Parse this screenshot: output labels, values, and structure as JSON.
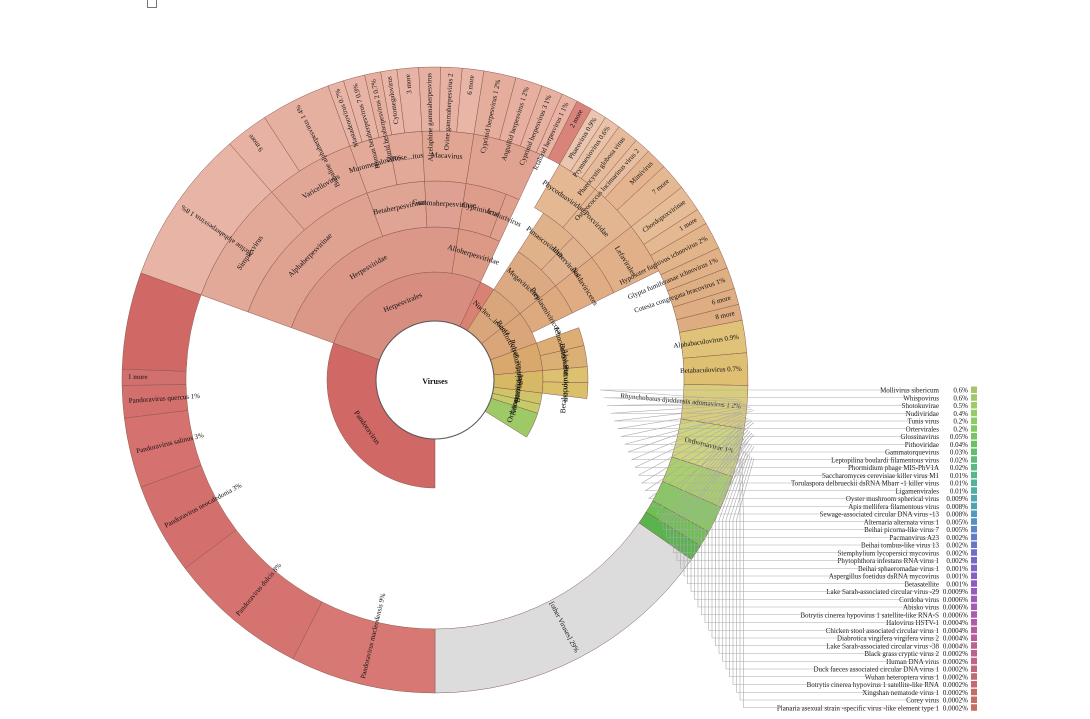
{
  "chart_data": {
    "type": "sunburst",
    "title": "",
    "center_label": "Viruses",
    "top_left_checkbox": "",
    "wedges": [
      {
        "ring": 1,
        "label": "Herpesvirales",
        "a0": -70,
        "a1": 25,
        "color": "#d78e80"
      },
      {
        "ring": 2,
        "label": "Herpesviridae",
        "a0": -70,
        "a1": 9,
        "color": "#db9888"
      },
      {
        "ring": 2,
        "label": "Alloherpesviridae",
        "a0": 9,
        "a1": 25,
        "color": "#dc9986"
      },
      {
        "ring": 3,
        "label": "Alphaherpesvirinae",
        "a0": -70,
        "a1": -20,
        "color": "#dfa190"
      },
      {
        "ring": 3,
        "label": "Betaherpesvirinae",
        "a0": -20,
        "a1": -3,
        "color": "#e0a494"
      },
      {
        "ring": 3,
        "label": "Gammaherpesvirinae",
        "a0": -3,
        "a1": 9,
        "color": "#dea092"
      },
      {
        "ring": 3,
        "label": "Cyprinivirus",
        "a0": 9,
        "a1": 21,
        "color": "#de9c8a"
      },
      {
        "ring": 3,
        "label": "Ictalurivirus",
        "a0": 21,
        "a1": 25,
        "color": "#dfa08e"
      },
      {
        "ring": 4,
        "label": "Simplexvirus",
        "a0": -70,
        "a1": -41,
        "color": "#e2a898"
      },
      {
        "ring": 4,
        "label": "Varicellovirus",
        "a0": -41,
        "a1": -20,
        "color": "#e1a696"
      },
      {
        "ring": 4,
        "label": "Muromegalovirus",
        "a0": -20,
        "a1": -11,
        "color": "#e3aa9a"
      },
      {
        "ring": 4,
        "label": "Rose...itus",
        "a0": -11,
        "a1": -3,
        "color": "#e2a898"
      },
      {
        "ring": 4,
        "label": "Macavirus",
        "a0": -3,
        "a1": 9,
        "color": "#e1a593"
      },
      {
        "ring": 4,
        "label": "",
        "a0": 9,
        "a1": 25,
        "color": "#e0a392"
      },
      {
        "ring": 5,
        "label": "Ateline alphaherpesvirus 1   8%",
        "a0": -70,
        "a1": -41,
        "color": "#e8b4a5"
      },
      {
        "ring": 5,
        "label": "9 more",
        "a0": -41,
        "a1": -33,
        "color": "#e7b2a3"
      },
      {
        "ring": 5,
        "label": "Bubaline alphaherpesvirus 1   4%",
        "a0": -33,
        "a1": -20,
        "color": "#e6b0a1"
      },
      {
        "ring": 5,
        "label": "Mastadenovirus   0.7%",
        "a0": -20,
        "a1": -17,
        "color": "#e8b4a6"
      },
      {
        "ring": 5,
        "label": "Human betaherpesvirus 7   0.9%",
        "a0": -17,
        "a1": -13,
        "color": "#e7b3a4"
      },
      {
        "ring": 5,
        "label": "Murid betaherpesvirus 2   0.7%",
        "a0": -13,
        "a1": -10,
        "color": "#e6b0a1"
      },
      {
        "ring": 5,
        "label": "Cytomegalovirus",
        "a0": -10,
        "a1": -7,
        "color": "#e8b5a7"
      },
      {
        "ring": 5,
        "label": "3 more",
        "a0": -7,
        "a1": -3,
        "color": "#e7b3a5"
      },
      {
        "ring": 5,
        "label": "Alcelaphine gammaherpesvirus",
        "a0": -3,
        "a1": 1,
        "color": "#e6b1a2"
      },
      {
        "ring": 5,
        "label": "Ovine gammaherpesvirus 2",
        "a0": 1,
        "a1": 5,
        "color": "#e7b2a3"
      },
      {
        "ring": 5,
        "label": "6 more",
        "a0": 5,
        "a1": 9,
        "color": "#e8b5a6"
      },
      {
        "ring": 5,
        "label": "Cyprinid herpesvirus 1   2%",
        "a0": 9,
        "a1": 15,
        "color": "#e5ad9c"
      },
      {
        "ring": 5,
        "label": "Anguillid herpesvirus 1   2%",
        "a0": 15,
        "a1": 20,
        "color": "#e6af9f"
      },
      {
        "ring": 5,
        "label": "Cyprinid herpesvirus 3   1%",
        "a0": 20,
        "a1": 24,
        "color": "#e7b1a1"
      },
      {
        "ring": 5,
        "label": "Ictalurid herpesvirus 1   1%",
        "a0": 24,
        "a1": 27,
        "color": "#e8b3a3"
      },
      {
        "ring": 5,
        "label": "2 more",
        "a0": 27,
        "a1": 30,
        "color": "#d9847a"
      },
      {
        "ring": 1,
        "label": "",
        "a0": 25,
        "a1": 33,
        "color": "#d98274"
      },
      {
        "ring": 1,
        "label": "Nucleo...irocota",
        "a0": 33,
        "a1": 52,
        "color": "#d9a57a"
      },
      {
        "ring": 2,
        "label": "Megaviricetes",
        "a0": 33,
        "a1": 52,
        "color": "#dcaa82"
      },
      {
        "ring": 3,
        "label": "Pimascovirales",
        "a0": 33,
        "a1": 44,
        "color": "#e0b28a"
      },
      {
        "ring": 3,
        "label": "Imitervirales",
        "a0": 44,
        "a1": 52,
        "color": "#e0b18d"
      },
      {
        "ring": 4,
        "label": "Phycodnaviridae",
        "a0": 30,
        "a1": 40,
        "color": "#e3b893"
      },
      {
        "ring": 4,
        "label": "Poxviridae",
        "a0": 40,
        "a1": 52,
        "color": "#e2b690"
      },
      {
        "ring": 5,
        "label": "Phaeovirus   0.9%",
        "a0": 30,
        "a1": 33,
        "color": "#eac5b0"
      },
      {
        "ring": 5,
        "label": "Prymnesiovirus   0.6%",
        "a0": 33,
        "a1": 36,
        "color": "#e9c2a8"
      },
      {
        "ring": 5,
        "label": "Phaeocystis globosa virus",
        "a0": 36,
        "a1": 40,
        "color": "#e6bb9c"
      },
      {
        "ring": 5,
        "label": "Ostreococcus lucimarinus virus 2",
        "a0": 40,
        "a1": 43,
        "color": "#e7bd9f"
      },
      {
        "ring": 5,
        "label": "Mimivirus",
        "a0": 43,
        "a1": 47,
        "color": "#e3b48e"
      },
      {
        "ring": 5,
        "label": "7 more",
        "a0": 47,
        "a1": 52,
        "color": "#e5b894"
      },
      {
        "ring": 1,
        "label": "Bamfordvirae",
        "a0": 52,
        "a1": 70,
        "color": "#dba57a"
      },
      {
        "ring": 2,
        "label": "Preplasmiviricota",
        "a0": 52,
        "a1": 64,
        "color": "#dda97f"
      },
      {
        "ring": 3,
        "label": "Naldaviricetes",
        "a0": 52,
        "a1": 64,
        "color": "#dfac84"
      },
      {
        "ring": 4,
        "label": "Lefavirales",
        "a0": 52,
        "a1": 64,
        "color": "#e1b088"
      },
      {
        "ring": 5,
        "label": "Chordopoxvirinae",
        "a0": 52,
        "a1": 57,
        "color": "#e6bc96"
      },
      {
        "ring": 5,
        "label": "1 more",
        "a0": 57,
        "a1": 60,
        "color": "#e4b891"
      },
      {
        "ring": 5,
        "label": "Hyposoter fugitivus ichnovirus   2%",
        "a0": 60,
        "a1": 65,
        "color": "#e2b48a"
      },
      {
        "ring": 5,
        "label": "Glypta fumiferanae ichnovirus   1%",
        "a0": 65,
        "a1": 69,
        "color": "#e0b186"
      },
      {
        "ring": 5,
        "label": "Cotesia congregata bracovirus   1%",
        "a0": 69,
        "a1": 73,
        "color": "#dfaf84"
      },
      {
        "ring": 5,
        "label": "6 more",
        "a0": 73,
        "a1": 76,
        "color": "#deae82"
      },
      {
        "ring": 5,
        "label": "8 more",
        "a0": 76,
        "a1": 79,
        "color": "#ddac80"
      },
      {
        "ring": 1,
        "label": "Polydnaviridae",
        "a0": 70,
        "a1": 85,
        "color": "#d8a86c"
      },
      {
        "ring": 2,
        "label": "Ichnovirus",
        "a0": 70,
        "a1": 77,
        "color": "#dcae73"
      },
      {
        "ring": 2,
        "label": "Bracovirus",
        "a0": 77,
        "a1": 85,
        "color": "#dbb075"
      },
      {
        "ring": 1,
        "label": "Baculoviridae",
        "a0": 85,
        "a1": 97,
        "color": "#d6b865"
      },
      {
        "ring": 2,
        "label": "Alphabaculovirus",
        "a0": 85,
        "a1": 91,
        "color": "#dcc270"
      },
      {
        "ring": 2,
        "label": "Betabaculovirus",
        "a0": 91,
        "a1": 97,
        "color": "#dbc06c"
      },
      {
        "ring": 5,
        "label": "Alphabaculovirus   0.9%",
        "a0": 79,
        "a1": 85,
        "color": "#e0c378"
      },
      {
        "ring": 5,
        "label": "Betabaculovirus   0.7%",
        "a0": 85,
        "a1": 91,
        "color": "#dfc073"
      },
      {
        "ring": 5,
        "label": "Rhynchobatus djiddensis adomavirus 1   2%",
        "a0": 91,
        "a1": 99,
        "color": "#d9cc7c"
      },
      {
        "ring": 1,
        "label": "Adomaviridae",
        "a0": 97,
        "a1": 103,
        "color": "#cfc46a"
      },
      {
        "ring": 1,
        "label": "Orthornavirae",
        "a0": 103,
        "a1": 108,
        "color": "#c6cb6a"
      },
      {
        "ring": 5,
        "label": "Orthornavirae   1%",
        "a0": 99,
        "a1": 108,
        "color": "#cfd47e"
      },
      {
        "ring": 5,
        "label": "",
        "a0": 108,
        "a1": 114,
        "color": "#aad06a"
      },
      {
        "ring": 5,
        "label": "",
        "a0": 114,
        "a1": 119,
        "color": "#86c95e"
      },
      {
        "ring": 5,
        "label": "",
        "a0": 119,
        "a1": 123,
        "color": "#6fbf55"
      },
      {
        "ring": 1,
        "label": "",
        "a0": 108,
        "a1": 122,
        "color": "#9ec967"
      },
      {
        "ring": 5,
        "label": "",
        "a0": 122,
        "a1": 125,
        "color": "#59b34e"
      },
      {
        "ring": 5,
        "label": "[other Viruses]   29%",
        "a0": 125,
        "a1": 180,
        "color": "#dcdcdc"
      },
      {
        "ring": 1,
        "label": "Pandoravirus",
        "a0": 180,
        "a1": 290,
        "color": "#d06866"
      },
      {
        "ring": 5,
        "label": "Pandoravirus macleodensis   9%",
        "a0": 180,
        "a1": 207,
        "color": "#d77874"
      },
      {
        "ring": 5,
        "label": "Pandoravirus dulcis   8%",
        "a0": 207,
        "a1": 233,
        "color": "#d57371"
      },
      {
        "ring": 5,
        "label": "Pandoravirus neocaledonia   3%",
        "a0": 233,
        "a1": 250,
        "color": "#d3706d"
      },
      {
        "ring": 5,
        "label": "Pandoravirus salinus   3%",
        "a0": 250,
        "a1": 263,
        "color": "#d5726f"
      },
      {
        "ring": 5,
        "label": "Pandoravirus quercus   1%",
        "a0": 263,
        "a1": 269,
        "color": "#d3706d"
      },
      {
        "ring": 5,
        "label": "1 more",
        "a0": 269,
        "a1": 272,
        "color": "#d27070"
      },
      {
        "ring": 5,
        "label": "",
        "a0": 272,
        "a1": 290,
        "color": "#d06866"
      }
    ],
    "legend": [
      {
        "name": "Mollivirus sibericum",
        "pct": "0.6%",
        "color": "#a8c36b"
      },
      {
        "name": "Whispovirus",
        "pct": "0.6%",
        "color": "#a4c66a"
      },
      {
        "name": "Shotokuvirae",
        "pct": "0.5%",
        "color": "#9fca69"
      },
      {
        "name": "Nudiviridae",
        "pct": "0.4%",
        "color": "#96cb68"
      },
      {
        "name": "Tunis virus",
        "pct": "0.2%",
        "color": "#8ccb66"
      },
      {
        "name": "Ortervirales",
        "pct": "0.2%",
        "color": "#82c865"
      },
      {
        "name": "Glossinavirus",
        "pct": "0.05%",
        "color": "#76c463"
      },
      {
        "name": "Pithoviridae",
        "pct": "0.04%",
        "color": "#6cc065"
      },
      {
        "name": "Gammatorquevirus",
        "pct": "0.03%",
        "color": "#64bd6e"
      },
      {
        "name": "Leptopilina boulardi filamentous virus",
        "pct": "0.02%",
        "color": "#5ebb78"
      },
      {
        "name": "Phormidium phage MIS-PhV1A",
        "pct": "0.02%",
        "color": "#5ab883"
      },
      {
        "name": "Saccharomyces cerevisiae killer virus M1",
        "pct": "0.01%",
        "color": "#56b58e"
      },
      {
        "name": "Torulaspora delbrueckii dsRNA Mbarr -1 killer virus",
        "pct": "0.01%",
        "color": "#53b299"
      },
      {
        "name": "Ligamenvirales",
        "pct": "0.01%",
        "color": "#51aea4"
      },
      {
        "name": "Oyster mushroom spherical virus",
        "pct": "0.009%",
        "color": "#4fa9ae"
      },
      {
        "name": "Apis mellifera filamentous virus",
        "pct": "0.008%",
        "color": "#4fa2b6"
      },
      {
        "name": "Sewage-associated circular DNA virus -13",
        "pct": "0.008%",
        "color": "#5199bd"
      },
      {
        "name": "Alternaria alternata virus 1",
        "pct": "0.005%",
        "color": "#5590c2"
      },
      {
        "name": "Beihai picorna-like virus 7",
        "pct": "0.005%",
        "color": "#5a87c6"
      },
      {
        "name": "Pacmanvirus A23",
        "pct": "0.002%",
        "color": "#5f7ec8"
      },
      {
        "name": "Beihai tombus-like virus 13",
        "pct": "0.002%",
        "color": "#6676c9"
      },
      {
        "name": "Stemphylium lycopersici mycovirus",
        "pct": "0.002%",
        "color": "#6d6fc9"
      },
      {
        "name": "Phytophthora infestans RNA virus 1",
        "pct": "0.002%",
        "color": "#7569c8"
      },
      {
        "name": "Beihai sphaeromadae virus 1",
        "pct": "0.001%",
        "color": "#7d64c6"
      },
      {
        "name": "Aspergillus foetidus dsRNA mycovirus",
        "pct": "0.001%",
        "color": "#8660c4"
      },
      {
        "name": "Betasatellite",
        "pct": "0.001%",
        "color": "#8e5dc1"
      },
      {
        "name": "Lake Sarah-associated circular virus -29",
        "pct": "0.0009%",
        "color": "#965bbd"
      },
      {
        "name": "Cordoba virus",
        "pct": "0.0006%",
        "color": "#9e5ab9"
      },
      {
        "name": "Abisko virus",
        "pct": "0.0006%",
        "color": "#a55ab4"
      },
      {
        "name": "Botrytis cinerea hypovirus 1 satellite-like RNA-S",
        "pct": "0.0006%",
        "color": "#ab5aae"
      },
      {
        "name": "Halovirus HSTV-1",
        "pct": "0.0004%",
        "color": "#b05ba8"
      },
      {
        "name": "Chicken stool associated circular virus 1",
        "pct": "0.0004%",
        "color": "#b45ca1"
      },
      {
        "name": "Diabrotica virgifera virgifera virus 2",
        "pct": "0.0004%",
        "color": "#b85e9a"
      },
      {
        "name": "Lake Sarah-associated circular virus -38",
        "pct": "0.0004%",
        "color": "#bb6092"
      },
      {
        "name": "Black grass cryptic virus 2",
        "pct": "0.0002%",
        "color": "#bd628b"
      },
      {
        "name": "Human DNA virus",
        "pct": "0.0002%",
        "color": "#bf6484"
      },
      {
        "name": "Duck faeces associated circular DNA virus 1",
        "pct": "0.0002%",
        "color": "#c0667c"
      },
      {
        "name": "Wuhan heteroptera virus 1",
        "pct": "0.0002%",
        "color": "#c16875"
      },
      {
        "name": "Botrytis cinerea hypovirus 1 satellite-like RNA",
        "pct": "0.0002%",
        "color": "#c26a6f"
      },
      {
        "name": "Xingshan nematode virus 1",
        "pct": "0.0002%",
        "color": "#c26c6a"
      },
      {
        "name": "Corey virus",
        "pct": "0.0002%",
        "color": "#c36e66"
      },
      {
        "name": "Planaria asexual strain -specific virus -like element type 1",
        "pct": "0.0002%",
        "color": "#c37062"
      }
    ]
  }
}
